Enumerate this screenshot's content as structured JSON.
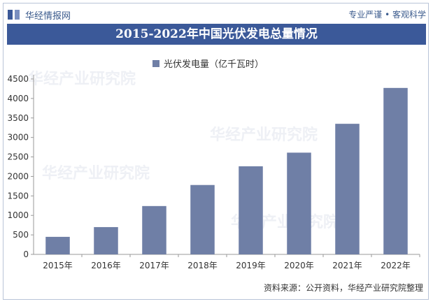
{
  "header": {
    "brand": "华经情报网",
    "slogan": "专业严谨 • 客观科学"
  },
  "watermark": "华经产业研究院",
  "chart_data": {
    "type": "bar",
    "title": "2015-2022年中国光伏发电总量情况",
    "categories": [
      "2015年",
      "2016年",
      "2017年",
      "2018年",
      "2019年",
      "2020年",
      "2021年",
      "2022年"
    ],
    "series": [
      {
        "name": "光伏发电量（亿千瓦时）",
        "values": [
          450,
          700,
          1240,
          1780,
          2260,
          2610,
          3350,
          4270
        ]
      }
    ],
    "yticks": [
      "0",
      "500",
      "1000",
      "1500",
      "2000",
      "2500",
      "3000",
      "3500",
      "4000",
      "4500"
    ],
    "ylim": [
      0,
      4500
    ],
    "bar_color": "#6f7fa6",
    "legend_position": "top"
  },
  "source": "资料来源：公开资料，华经产业研究院整理"
}
